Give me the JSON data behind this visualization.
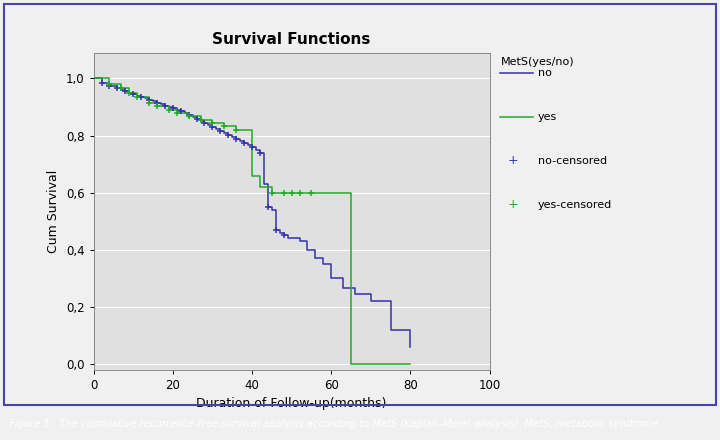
{
  "title": "Survival Functions",
  "xlabel": "Duration of Follow-up(months)",
  "ylabel": "Cum Survival",
  "legend_title": "MetS(yes/no)",
  "xlim": [
    0,
    100
  ],
  "ylim": [
    -0.02,
    1.09
  ],
  "yticks": [
    0.0,
    0.2,
    0.4,
    0.6,
    0.8,
    1.0
  ],
  "ytick_labels": [
    "0,0",
    "0,2",
    "0,4",
    "0,6",
    "0,8",
    "1,0"
  ],
  "xticks": [
    0,
    20,
    40,
    60,
    80,
    100
  ],
  "outer_bg": "#f0f0f0",
  "plot_bg_color": "#e0e0e0",
  "no_color": "#3333aa",
  "yes_color": "#22aa22",
  "caption": "Figure 1.  The cumulative recurrence-free survival analysis according to MetS (Kaplan–Meier analysis). MetS, metabolic syndrome.",
  "caption_bg": "#1a3a6b",
  "no_km_times": [
    0,
    2,
    4,
    6,
    7,
    8,
    9,
    10,
    11,
    12,
    13,
    14,
    15,
    16,
    17,
    18,
    19,
    20,
    21,
    22,
    23,
    24,
    25,
    26,
    27,
    28,
    29,
    30,
    31,
    32,
    33,
    34,
    35,
    36,
    37,
    38,
    39,
    40,
    41,
    42,
    43,
    44,
    45,
    46,
    47,
    48,
    49,
    50,
    52,
    54,
    56,
    58,
    60,
    63,
    66,
    70,
    75,
    80
  ],
  "no_km_survival": [
    1.0,
    0.985,
    0.975,
    0.965,
    0.96,
    0.955,
    0.95,
    0.945,
    0.94,
    0.935,
    0.93,
    0.925,
    0.92,
    0.915,
    0.91,
    0.905,
    0.9,
    0.895,
    0.89,
    0.885,
    0.878,
    0.872,
    0.865,
    0.858,
    0.851,
    0.844,
    0.837,
    0.83,
    0.823,
    0.816,
    0.809,
    0.802,
    0.795,
    0.788,
    0.781,
    0.774,
    0.767,
    0.76,
    0.75,
    0.74,
    0.63,
    0.55,
    0.54,
    0.47,
    0.46,
    0.45,
    0.44,
    0.44,
    0.43,
    0.4,
    0.37,
    0.35,
    0.3,
    0.265,
    0.245,
    0.22,
    0.12,
    0.06
  ],
  "no_censored_times": [
    2,
    4,
    6,
    8,
    10,
    12,
    14,
    16,
    18,
    20,
    22,
    24,
    26,
    28,
    30,
    32,
    34,
    36,
    38,
    40,
    42,
    44,
    46,
    48
  ],
  "no_censored_survival": [
    0.985,
    0.975,
    0.965,
    0.955,
    0.945,
    0.935,
    0.925,
    0.915,
    0.905,
    0.895,
    0.885,
    0.872,
    0.858,
    0.844,
    0.83,
    0.816,
    0.802,
    0.788,
    0.774,
    0.76,
    0.74,
    0.55,
    0.47,
    0.45
  ],
  "yes_km_times": [
    0,
    4,
    7,
    9,
    11,
    14,
    16,
    19,
    21,
    24,
    27,
    30,
    33,
    36,
    40,
    42,
    45,
    48,
    55,
    60,
    65,
    80
  ],
  "yes_km_survival": [
    1.0,
    0.98,
    0.965,
    0.95,
    0.935,
    0.915,
    0.905,
    0.89,
    0.88,
    0.868,
    0.856,
    0.844,
    0.832,
    0.82,
    0.66,
    0.62,
    0.6,
    0.6,
    0.6,
    0.6,
    0.0,
    0.0
  ],
  "yes_censored_times": [
    4,
    7,
    9,
    11,
    14,
    16,
    19,
    21,
    24,
    27,
    30,
    33,
    36,
    45,
    48,
    50,
    52,
    55
  ],
  "yes_censored_survival": [
    0.98,
    0.965,
    0.95,
    0.935,
    0.915,
    0.905,
    0.89,
    0.88,
    0.868,
    0.856,
    0.844,
    0.832,
    0.82,
    0.6,
    0.6,
    0.6,
    0.6,
    0.6
  ]
}
